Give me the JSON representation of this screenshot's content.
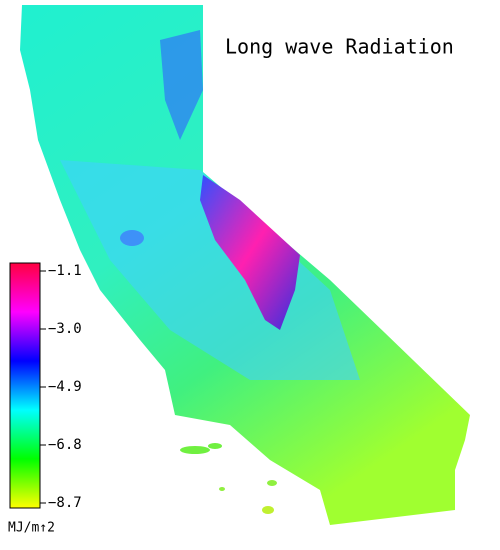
{
  "title": "Long wave Radiation",
  "colorbar": {
    "range": [
      -8.7,
      -1.1
    ],
    "ticks": [
      {
        "value": -1.1,
        "label": "−1.1"
      },
      {
        "value": -3.0,
        "label": "−3.0"
      },
      {
        "value": -4.9,
        "label": "−4.9"
      },
      {
        "value": -6.8,
        "label": "−6.8"
      },
      {
        "value": -8.7,
        "label": "−8.7"
      }
    ],
    "colors": [
      "#ffff00",
      "#00ff00",
      "#00ffff",
      "#0000ff",
      "#ff00ff",
      "#ff0040"
    ],
    "unit": "MJ/m↑2"
  }
}
